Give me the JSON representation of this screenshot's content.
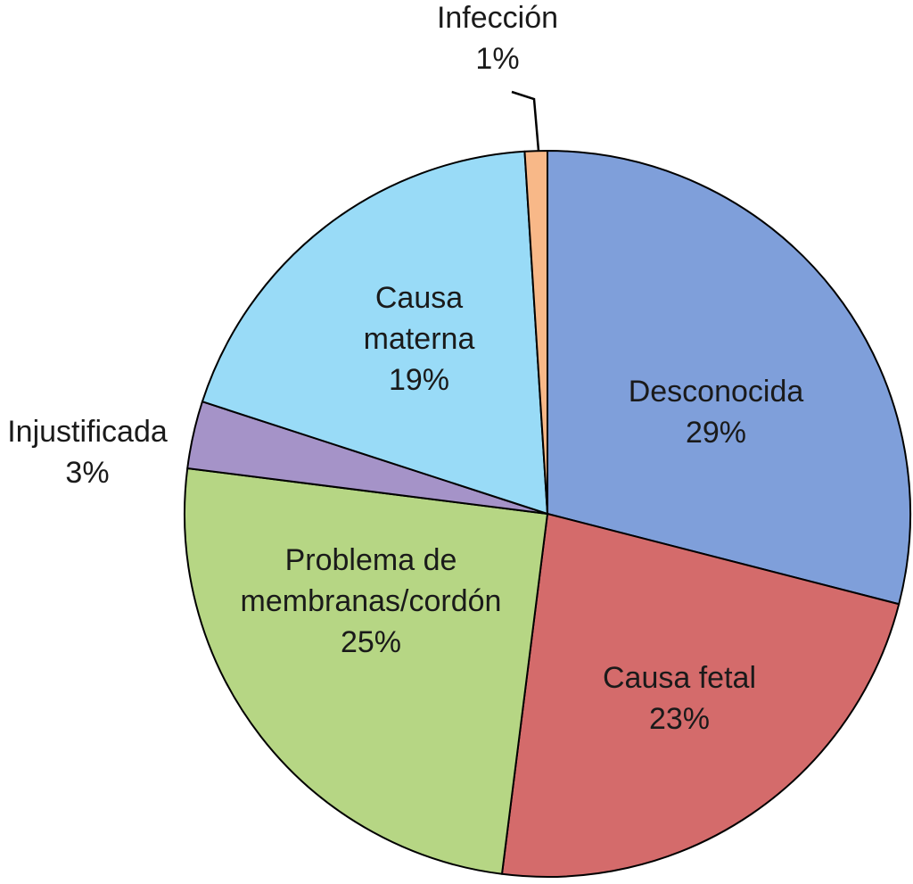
{
  "chart_data": {
    "type": "pie",
    "start_angle_deg": 0,
    "direction": "clockwise",
    "slices": [
      {
        "label_lines": [
          "Desconocida"
        ],
        "value": 29,
        "percent_label": "29%",
        "color": "#7f9fda",
        "label_position": "inside"
      },
      {
        "label_lines": [
          "Causa fetal"
        ],
        "value": 23,
        "percent_label": "23%",
        "color": "#d46b6b",
        "label_position": "inside"
      },
      {
        "label_lines": [
          "Problema de",
          "membranas/cordón"
        ],
        "value": 25,
        "percent_label": "25%",
        "color": "#b6d684",
        "label_position": "inside"
      },
      {
        "label_lines": [
          "Injustificada"
        ],
        "value": 3,
        "percent_label": "3%",
        "color": "#a593c8",
        "label_position": "outside"
      },
      {
        "label_lines": [
          "Causa",
          "materna"
        ],
        "value": 19,
        "percent_label": "19%",
        "color": "#99dbf7",
        "label_position": "inside"
      },
      {
        "label_lines": [
          "Infección"
        ],
        "value": 1,
        "percent_label": "1%",
        "color": "#f8b888",
        "label_position": "outside-leader"
      }
    ],
    "border_color": "#000000"
  }
}
